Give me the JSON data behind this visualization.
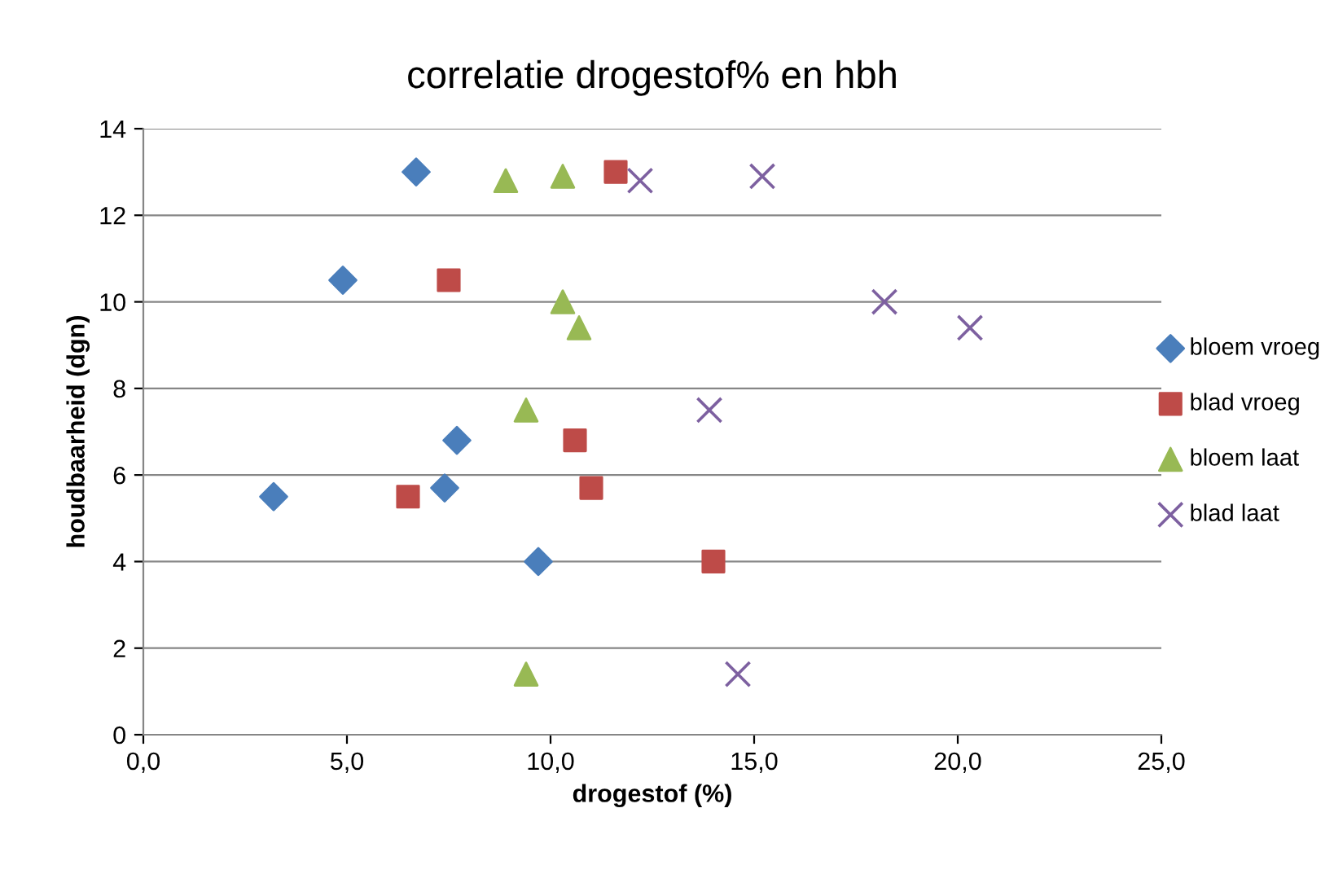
{
  "chart_data": {
    "type": "scatter",
    "title": "correlatie drogestof% en hbh",
    "xlabel": "drogestof (%)",
    "ylabel": "houdbaarheid (dgn)",
    "xlim": [
      0,
      25
    ],
    "xticks": [
      {
        "value": 0,
        "label": "0,0"
      },
      {
        "value": 5,
        "label": "5,0"
      },
      {
        "value": 10,
        "label": "10,0"
      },
      {
        "value": 15,
        "label": "15,0"
      },
      {
        "value": 20,
        "label": "20,0"
      },
      {
        "value": 25,
        "label": "25,0"
      }
    ],
    "ylim": [
      0,
      14
    ],
    "yticks": [
      0,
      2,
      4,
      6,
      8,
      10,
      12,
      14
    ],
    "grid": "y",
    "legend": "right",
    "series": [
      {
        "name": "bloem vroeg",
        "color": "#4a7ebb",
        "marker": "diamond",
        "x": [
          6.7,
          4.9,
          7.7,
          7.4,
          3.2,
          9.7
        ],
        "values": [
          13.0,
          10.5,
          6.8,
          5.7,
          5.5,
          4.0
        ]
      },
      {
        "name": "blad vroeg",
        "color": "#be4b48",
        "marker": "square",
        "x": [
          11.6,
          7.5,
          10.6,
          11.0,
          6.5,
          14.0
        ],
        "values": [
          13.0,
          10.5,
          6.8,
          5.7,
          5.5,
          4.0
        ]
      },
      {
        "name": "bloem laat",
        "color": "#98b954",
        "marker": "triangle",
        "x": [
          8.9,
          10.3,
          10.3,
          10.7,
          9.4,
          9.4
        ],
        "values": [
          12.8,
          12.9,
          10.0,
          9.4,
          7.5,
          1.4
        ]
      },
      {
        "name": "blad laat",
        "color": "#7d60a0",
        "marker": "cross",
        "x": [
          12.2,
          15.2,
          18.2,
          20.3,
          13.9,
          14.6
        ],
        "values": [
          12.8,
          12.9,
          10.0,
          9.4,
          7.5,
          1.4
        ]
      }
    ]
  }
}
